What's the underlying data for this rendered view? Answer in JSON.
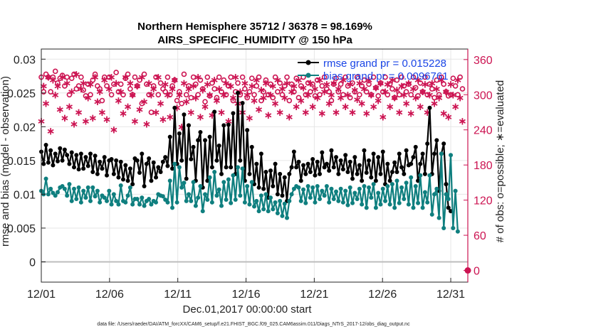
{
  "chart_data": {
    "type": "line",
    "title": "Northern Hemisphere 35712 / 36378 = 98.169%",
    "subtitle": "AIRS_SPECIFIC_HUMIDITY @ 150 hPa",
    "xlabel": "Dec.01,2017 00:00:00 start",
    "ylabel": "rmse and bias (model - observation)",
    "ylabel_right": "# of obs: o=possible; ∗=evaluated",
    "footnote": "data file: /Users/raeder/DAI/ATM_forcXX/CAM6_setup/f.e21.FHIST_BGC.f09_025.CAM6assim.011/Diags_NTrS_2017-12/obs_diag_output.nc",
    "x_tick_labels": [
      "12/01",
      "12/06",
      "12/11",
      "12/16",
      "12/21",
      "12/26",
      "12/31"
    ],
    "x_tick_days": [
      1,
      6,
      11,
      16,
      21,
      26,
      31
    ],
    "xlim": [
      1,
      32.25
    ],
    "y_tick_labels": [
      "0",
      "0.005",
      "0.01",
      "0.015",
      "0.02",
      "0.025",
      "0.03"
    ],
    "ylim": [
      -0.003,
      0.0315
    ],
    "y2_tick_labels": [
      "0",
      "60",
      "120",
      "180",
      "240",
      "300",
      "360"
    ],
    "y2lim": [
      -20,
      378
    ],
    "zero_line": 0,
    "colors": {
      "rmse": "#000000",
      "bias": "#0f7f7f",
      "obs": "#cc1452",
      "zero": "#bdbdbd",
      "grid": "#e6e6e6",
      "axis": "#262626",
      "legend_text": "#1a45e6"
    },
    "series": [
      {
        "name": "rmse grand pr = 0.015228",
        "values": [
          0.0163,
          0.0145,
          0.0173,
          0.0147,
          0.0165,
          0.0143,
          0.016,
          0.0149,
          0.0168,
          0.015,
          0.0166,
          0.0158,
          0.0145,
          0.0162,
          0.014,
          0.0158,
          0.0137,
          0.016,
          0.0138,
          0.0155,
          0.0142,
          0.016,
          0.0133,
          0.0157,
          0.013,
          0.0148,
          0.0138,
          0.0155,
          0.0128,
          0.015,
          0.0152,
          0.013,
          0.015,
          0.0125,
          0.0148,
          0.0122,
          0.0143,
          0.012,
          0.0138,
          0.0115,
          0.0153,
          0.015,
          0.0132,
          0.016,
          0.0112,
          0.0145,
          0.0153,
          0.012,
          0.0147,
          0.0125,
          0.014,
          0.0133,
          0.0148,
          0.0155,
          0.0142,
          0.0185,
          0.0138,
          0.0228,
          0.0145,
          0.019,
          0.015,
          0.0218,
          0.0123,
          0.0202,
          0.0152,
          0.017,
          0.012,
          0.018,
          0.0192,
          0.011,
          0.018,
          0.012,
          0.0185,
          0.014,
          0.0222,
          0.015,
          0.0172,
          0.013,
          0.0202,
          0.014,
          0.0203,
          0.014,
          0.022,
          0.013,
          0.025,
          0.015,
          0.0235,
          0.012,
          0.0195,
          0.013,
          0.017,
          0.0115,
          0.0145,
          0.011,
          0.016,
          0.0108,
          0.0133,
          0.0095,
          0.0135,
          0.0112,
          0.0145,
          0.01,
          0.013,
          0.0098,
          0.0125,
          0.009,
          0.013,
          0.014,
          0.0163,
          0.014,
          0.0148,
          0.012,
          0.0143,
          0.013,
          0.0145,
          0.0133,
          0.0152,
          0.0128,
          0.0148,
          0.013,
          0.0162,
          0.014,
          0.0145,
          0.0135,
          0.0165,
          0.014,
          0.0155,
          0.013,
          0.015,
          0.0137,
          0.0158,
          0.0133,
          0.0148,
          0.0123,
          0.0155,
          0.013,
          0.0143,
          0.012,
          0.0165,
          0.0132,
          0.015,
          0.0125,
          0.016,
          0.012,
          0.0155,
          0.013,
          0.0163,
          0.0115,
          0.0145,
          0.012,
          0.0133,
          0.0147,
          0.0133,
          0.016,
          0.014,
          0.013,
          0.0165,
          0.0143,
          0.0145,
          0.0155,
          0.017,
          0.012,
          0.0145,
          0.016,
          0.013,
          0.0175,
          0.0228,
          0.013,
          0.016,
          0.018,
          0.0105,
          0.016,
          0.0175,
          0.0115,
          0.008,
          0.0075
        ]
      },
      {
        "name": "bias grand pr = 0.0096761",
        "values": [
          0.0105,
          0.01,
          0.0123,
          0.01,
          0.0108,
          0.0102,
          0.0098,
          0.0103,
          0.011,
          0.0112,
          0.0108,
          0.0098,
          0.0115,
          0.009,
          0.0108,
          0.0093,
          0.011,
          0.0088,
          0.0105,
          0.0095,
          0.011,
          0.009,
          0.011,
          0.0097,
          0.0105,
          0.0088,
          0.0098,
          0.0095,
          0.009,
          0.0105,
          0.0085,
          0.01,
          0.009,
          0.0085,
          0.0113,
          0.009,
          0.0088,
          0.0098,
          0.011,
          0.0085,
          0.0093,
          0.0093,
          0.0085,
          0.0095,
          0.0083,
          0.009,
          0.0093,
          0.0085,
          0.009,
          0.0088,
          0.01,
          0.0098,
          0.0097,
          0.0092,
          0.0088,
          0.012,
          0.008,
          0.0145,
          0.0088,
          0.014,
          0.011,
          0.0117,
          0.009,
          0.01,
          0.009,
          0.0118,
          0.0083,
          0.0095,
          0.0112,
          0.0075,
          0.01,
          0.0092,
          0.0125,
          0.0088,
          0.0133,
          0.0098,
          0.0107,
          0.0083,
          0.0118,
          0.0092,
          0.0122,
          0.0087,
          0.0128,
          0.0092,
          0.014,
          0.0098,
          0.0138,
          0.0088,
          0.0112,
          0.0085,
          0.0118,
          0.0082,
          0.009,
          0.0075,
          0.0098,
          0.0078,
          0.01,
          0.0075,
          0.0095,
          0.0078,
          0.0088,
          0.0072,
          0.009,
          0.0068,
          0.0086,
          0.0065,
          0.009,
          0.01,
          0.0108,
          0.0112,
          0.011,
          0.009,
          0.0107,
          0.0087,
          0.0112,
          0.0095,
          0.011,
          0.0088,
          0.0112,
          0.0093,
          0.0105,
          0.0098,
          0.0112,
          0.0088,
          0.0108,
          0.0093,
          0.0104,
          0.009,
          0.0108,
          0.0088,
          0.0105,
          0.0084,
          0.011,
          0.0087,
          0.0102,
          0.0093,
          0.0108,
          0.0085,
          0.0112,
          0.008,
          0.011,
          0.0095,
          0.0115,
          0.008,
          0.0102,
          0.0085,
          0.0108,
          0.009,
          0.0112,
          0.0085,
          0.0115,
          0.008,
          0.012,
          0.0087,
          0.011,
          0.0093,
          0.0117,
          0.0085,
          0.0125,
          0.008,
          0.0112,
          0.0087,
          0.0128,
          0.008,
          0.0103,
          0.0088,
          0.0128,
          0.007,
          0.01,
          0.0108,
          0.0065,
          0.016,
          0.005,
          0.01,
          0.0093,
          0.0158,
          0.005,
          0.0105,
          0.0045
        ]
      },
      {
        "name": "possible",
        "values": [
          330,
          305,
          335,
          330,
          305,
          330,
          340,
          320,
          328,
          333,
          315,
          330,
          300,
          328,
          335,
          310,
          315,
          330,
          308,
          298,
          318,
          300,
          325,
          335,
          315,
          310,
          290,
          330,
          315,
          330,
          300,
          318,
          338,
          305,
          318,
          300,
          328,
          335,
          310,
          300,
          330,
          315,
          325,
          285,
          335,
          318,
          300,
          270,
          315,
          330,
          300,
          320,
          310,
          305,
          330,
          300,
          315,
          325,
          290,
          305,
          285,
          335,
          300,
          315,
          295,
          330,
          318,
          300,
          325,
          310,
          288,
          330,
          298,
          320,
          310,
          295,
          330,
          305,
          325,
          300,
          315,
          330,
          290,
          305,
          320,
          300,
          330,
          310,
          295,
          305,
          328,
          300,
          315,
          330,
          290,
          305,
          325,
          300,
          318,
          295,
          330,
          305,
          320,
          300,
          315,
          330,
          290,
          318,
          305,
          328,
          295,
          315,
          330,
          300,
          320,
          305,
          318,
          298,
          325,
          300,
          315,
          330,
          310,
          305,
          290,
          318,
          328,
          305,
          318,
          300,
          330,
          315,
          295,
          320,
          305,
          330,
          300,
          315,
          325,
          305,
          318,
          300,
          330,
          312,
          298,
          320,
          305,
          330,
          300,
          318,
          310,
          295,
          325,
          300,
          330,
          315,
          305,
          318,
          300,
          330,
          312,
          298,
          320,
          305,
          330,
          300,
          318,
          310,
          295,
          325,
          300,
          330,
          318,
          305,
          298,
          300,
          328,
          315,
          300,
          330,
          310
        ]
      },
      {
        "name": "evaluated",
        "values": [
          255,
          315,
          285,
          330,
          238,
          325,
          300,
          315,
          275,
          330,
          260,
          320,
          280,
          305,
          250,
          335,
          270,
          310,
          320,
          255,
          295,
          318,
          260,
          330,
          288,
          305,
          270,
          325,
          258,
          310,
          330,
          240,
          320,
          290,
          305,
          268,
          330,
          280,
          320,
          300,
          255,
          315,
          275,
          330,
          288,
          250,
          320,
          300,
          310,
          270,
          330,
          285,
          258,
          318,
          300,
          262,
          310,
          325,
          278,
          300,
          245,
          320,
          288,
          310,
          270,
          315,
          295,
          330,
          262,
          308,
          280,
          318,
          300,
          265,
          325,
          290,
          310,
          270,
          300,
          320,
          255,
          315,
          295,
          330,
          285,
          305,
          270,
          320,
          300,
          260,
          315,
          290,
          325,
          275,
          308,
          295,
          320,
          265,
          300,
          315,
          285,
          325,
          270,
          310,
          295,
          320,
          262,
          305,
          315,
          280,
          325,
          290,
          312,
          270,
          300,
          320,
          280,
          310,
          295,
          325,
          268,
          305,
          318,
          285,
          300,
          320,
          270,
          310,
          295,
          325,
          280,
          300,
          318,
          270,
          308,
          292,
          320,
          285,
          310,
          268,
          325,
          300,
          280,
          312,
          290,
          320,
          262,
          305,
          318,
          280,
          325,
          295,
          308,
          270,
          315,
          300,
          285,
          320,
          268,
          310,
          295,
          325,
          280,
          305,
          318,
          270,
          300,
          320,
          285,
          310,
          295,
          325,
          268,
          305,
          262,
          318,
          300,
          280,
          325,
          295,
          255
        ]
      }
    ],
    "markers": {
      "possible": "o",
      "evaluated": "∗"
    },
    "legend_position": "top-right"
  }
}
